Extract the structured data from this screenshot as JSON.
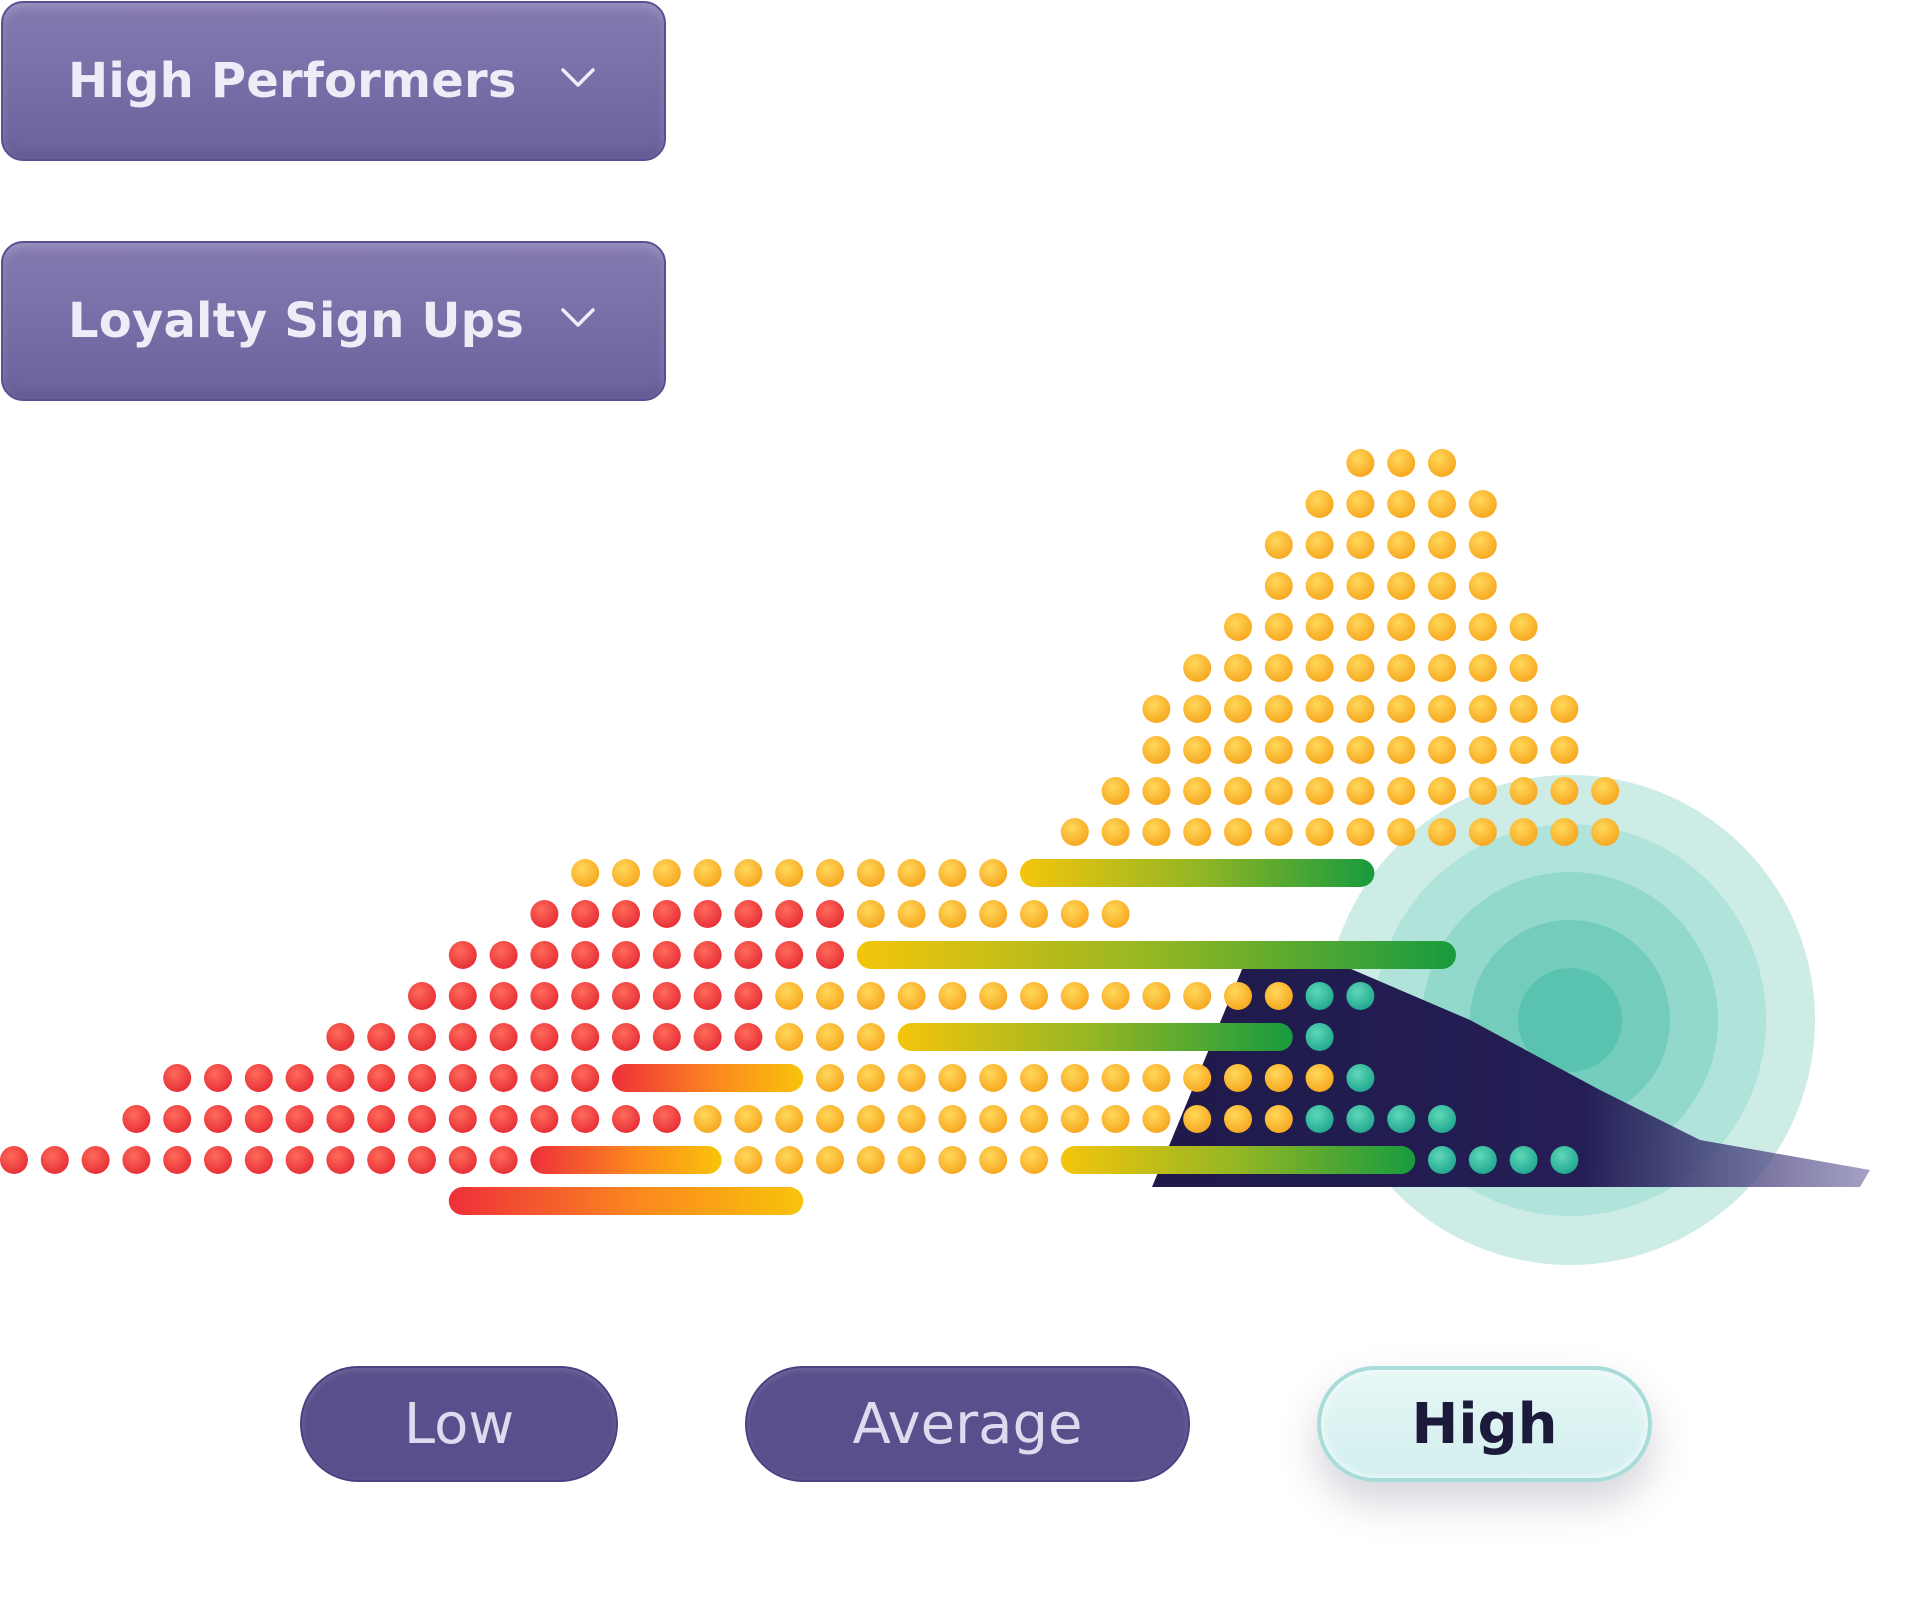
{
  "filters": {
    "segment": {
      "label": "High Performers",
      "icon": "chevron-down-icon"
    },
    "metric": {
      "label": "Loyalty Sign Ups",
      "icon": "chevron-down-icon"
    }
  },
  "levels": {
    "low": "Low",
    "average": "Average",
    "high": "High",
    "selected": "high"
  },
  "colors": {
    "dropdown_bg": "#7b70a9",
    "pill_dark": "#5a4f8c",
    "pill_selected": "#d8f2f1",
    "low": "#ef3b3b",
    "average": "#fbb426",
    "high": "#2fb59a",
    "shadow_navy": "#1f1a4a"
  }
}
